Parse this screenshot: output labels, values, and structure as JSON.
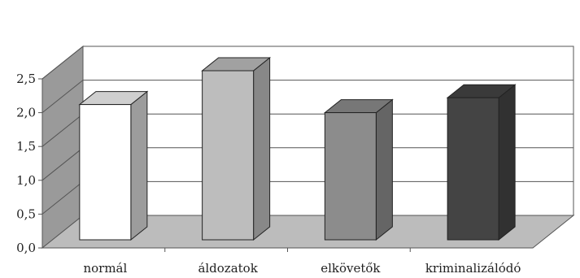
{
  "chart_data": {
    "type": "bar",
    "style": "3d-column",
    "categories": [
      "normál",
      "áldozatok",
      "elkövetők",
      "kriminalizálódó"
    ],
    "values": [
      2.0,
      2.5,
      1.88,
      2.1
    ],
    "yticks": [
      "0,0",
      "0,5",
      "1,0",
      "1,5",
      "2,0",
      "2,5"
    ],
    "ylim": [
      0,
      2.5
    ],
    "grid": true,
    "legend": "none",
    "bar_colors": [
      "#ffffff",
      "#bdbdbd",
      "#8c8c8c",
      "#444444"
    ],
    "wall_color": "#9a9a9a",
    "floor_color": "#bcbcbc"
  }
}
